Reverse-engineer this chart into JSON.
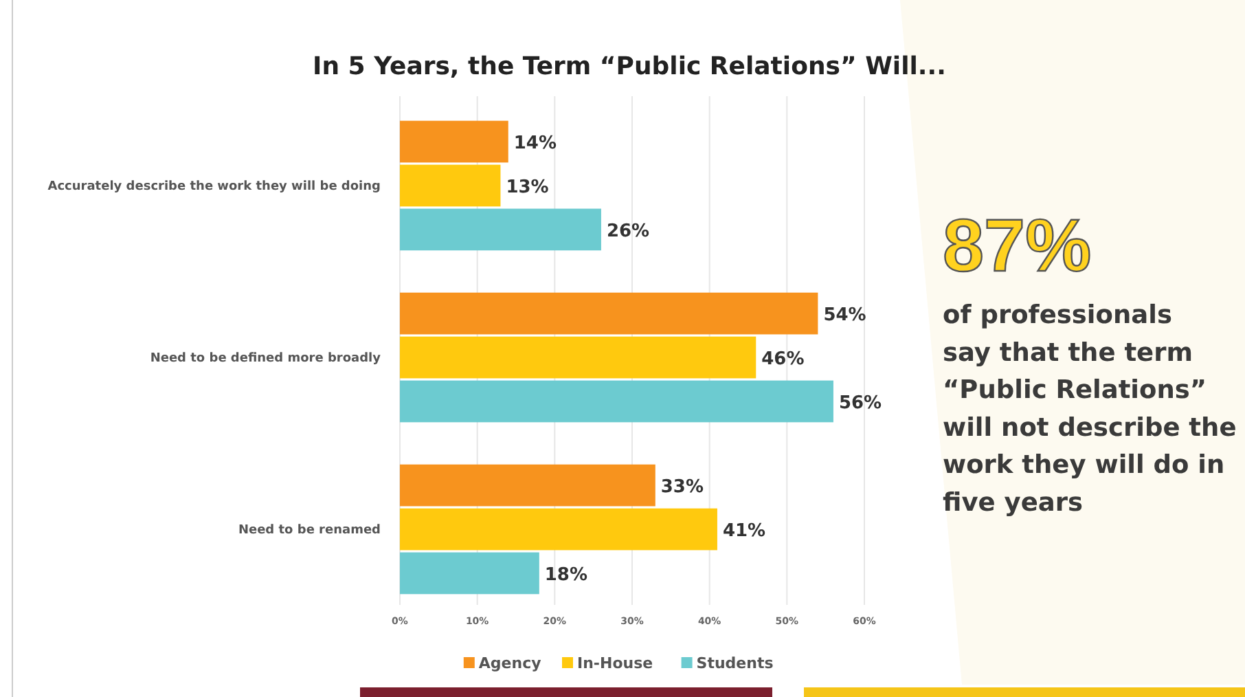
{
  "chart_data": {
    "type": "bar",
    "orientation": "horizontal",
    "title": "In 5 Years, the Term “Public Relations” Will...",
    "categories": [
      "Accurately describe the work they will be doing",
      "Need to be defined more broadly",
      "Need to be renamed"
    ],
    "series": [
      {
        "name": "Agency",
        "color": "#f7931e",
        "values": [
          14,
          54,
          33
        ],
        "value_labels": [
          "14%",
          "54%",
          "33%"
        ]
      },
      {
        "name": "In-House",
        "color": "#ffc90e",
        "values": [
          13,
          46,
          41
        ],
        "value_labels": [
          "13%",
          "46%",
          "41%"
        ]
      },
      {
        "name": "Students",
        "color": "#6ccbd0",
        "values": [
          26,
          56,
          18
        ],
        "value_labels": [
          "26%",
          "56%",
          "18%"
        ]
      }
    ],
    "xlim": [
      0,
      60
    ],
    "xticks": [
      {
        "value": 0,
        "label": "0%"
      },
      {
        "value": 10,
        "label": "10%"
      },
      {
        "value": 20,
        "label": "20%"
      },
      {
        "value": 30,
        "label": "30%"
      },
      {
        "value": 40,
        "label": "40%"
      },
      {
        "value": 50,
        "label": "50%"
      },
      {
        "value": 60,
        "label": "60%"
      }
    ],
    "grid": "x",
    "legend": "bottom",
    "annotations": [
      "87%",
      "of professionals\nsay that the term\n“Public Relations”\nwill not describe the\nwork they will do in\nfive years"
    ]
  }
}
